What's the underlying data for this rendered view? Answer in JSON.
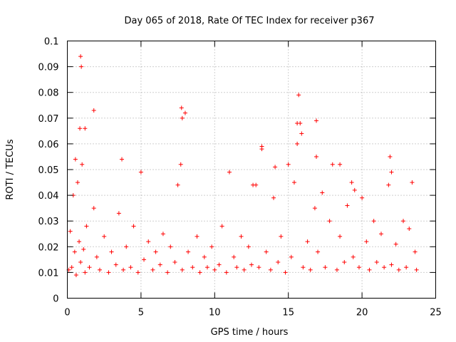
{
  "chart_data": {
    "type": "scatter",
    "title": "Day 065 of 2018, Rate Of TEC Index for receiver p367",
    "xlabel": "GPS time / hours",
    "ylabel": "ROTI / TECUs",
    "xlim": [
      0,
      25
    ],
    "ylim": [
      0,
      0.1
    ],
    "xticks": [
      0,
      5,
      10,
      15,
      20,
      25
    ],
    "xtick_labels": [
      "0",
      "5",
      "10",
      "15",
      "20",
      "25"
    ],
    "yticks": [
      0,
      0.01,
      0.02,
      0.03,
      0.04,
      0.05,
      0.06,
      0.07,
      0.08,
      0.09,
      0.1
    ],
    "ytick_labels": [
      "0",
      "0.01",
      "0.02",
      "0.03",
      "0.04",
      "0.05",
      "0.06",
      "0.07",
      "0.08",
      "0.09",
      "0.1"
    ],
    "grid": true,
    "marker": "+",
    "color": "#ff0000",
    "series": [
      {
        "name": "ROTI",
        "x": [
          0.1,
          0.2,
          0.3,
          0.4,
          0.5,
          0.6,
          0.7,
          0.8,
          0.85,
          0.9,
          1.0,
          1.1,
          1.2,
          1.3,
          1.5,
          1.8,
          2.0,
          2.2,
          2.5,
          2.8,
          3.0,
          3.3,
          3.5,
          3.8,
          4.0,
          4.3,
          4.5,
          4.8,
          5.0,
          5.2,
          5.5,
          5.8,
          6.0,
          6.3,
          6.5,
          6.8,
          7.0,
          7.3,
          7.5,
          7.7,
          7.8,
          8.0,
          8.2,
          8.5,
          8.8,
          9.0,
          9.3,
          9.5,
          9.8,
          10.0,
          10.3,
          10.5,
          10.8,
          11.0,
          11.3,
          11.5,
          11.8,
          12.0,
          12.3,
          12.5,
          12.8,
          13.0,
          13.2,
          13.5,
          13.8,
          14.0,
          14.3,
          14.5,
          14.8,
          15.0,
          15.2,
          15.4,
          15.6,
          15.7,
          15.8,
          15.9,
          16.0,
          16.3,
          16.5,
          16.8,
          16.9,
          17.0,
          17.3,
          17.5,
          17.8,
          18.0,
          18.3,
          18.5,
          18.8,
          19.0,
          19.3,
          19.4,
          19.5,
          19.8,
          20.0,
          20.3,
          20.5,
          20.8,
          21.0,
          21.3,
          21.5,
          21.8,
          21.9,
          22.0,
          22.3,
          22.5,
          22.8,
          23.0,
          23.2,
          23.4,
          23.6,
          23.7,
          0.9,
          0.95,
          1.8,
          7.75,
          7.8,
          15.6,
          16.9,
          13.2,
          22.0,
          0.55,
          1.2,
          3.7,
          12.6,
          18.5,
          14.1
        ],
        "y": [
          0.011,
          0.026,
          0.012,
          0.04,
          0.018,
          0.009,
          0.045,
          0.022,
          0.066,
          0.014,
          0.052,
          0.019,
          0.01,
          0.028,
          0.012,
          0.035,
          0.016,
          0.011,
          0.024,
          0.01,
          0.018,
          0.013,
          0.033,
          0.011,
          0.02,
          0.012,
          0.028,
          0.01,
          0.049,
          0.015,
          0.022,
          0.011,
          0.018,
          0.013,
          0.025,
          0.01,
          0.02,
          0.014,
          0.044,
          0.052,
          0.011,
          0.072,
          0.018,
          0.012,
          0.024,
          0.01,
          0.016,
          0.012,
          0.02,
          0.011,
          0.013,
          0.028,
          0.01,
          0.049,
          0.016,
          0.012,
          0.024,
          0.011,
          0.02,
          0.013,
          0.044,
          0.012,
          0.058,
          0.018,
          0.011,
          0.039,
          0.014,
          0.024,
          0.01,
          0.052,
          0.016,
          0.045,
          0.06,
          0.079,
          0.068,
          0.064,
          0.012,
          0.022,
          0.011,
          0.035,
          0.069,
          0.018,
          0.041,
          0.012,
          0.03,
          0.052,
          0.011,
          0.024,
          0.014,
          0.036,
          0.045,
          0.016,
          0.042,
          0.012,
          0.039,
          0.022,
          0.011,
          0.03,
          0.014,
          0.025,
          0.012,
          0.044,
          0.055,
          0.013,
          0.021,
          0.011,
          0.03,
          0.012,
          0.027,
          0.045,
          0.018,
          0.011,
          0.094,
          0.09,
          0.073,
          0.074,
          0.07,
          0.068,
          0.055,
          0.059,
          0.049,
          0.054,
          0.066,
          0.054,
          0.044,
          0.052,
          0.051
        ]
      }
    ]
  }
}
